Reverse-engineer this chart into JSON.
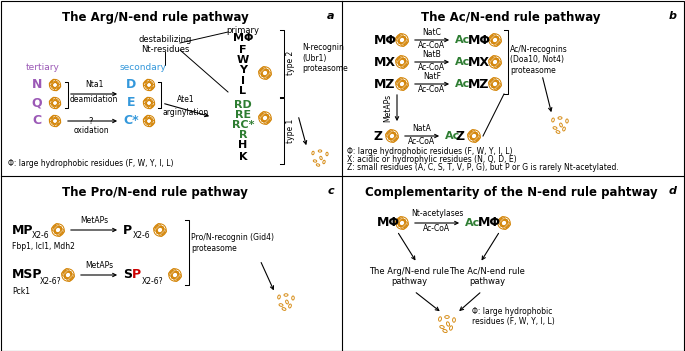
{
  "panel_a_title": "The Arg/N-end rule pathway",
  "panel_b_title": "The Ac/N-end rule pathway",
  "panel_c_title": "The Pro/N-end rule pathway",
  "panel_d_title": "Complementarity of the N-end rule pahtway",
  "bg_color": "#ffffff",
  "tertiary_color": "#9b59b6",
  "secondary_color": "#3498db",
  "green_color": "#2e7d32",
  "protein_color": "#d4860a",
  "red_color": "#cc0000"
}
